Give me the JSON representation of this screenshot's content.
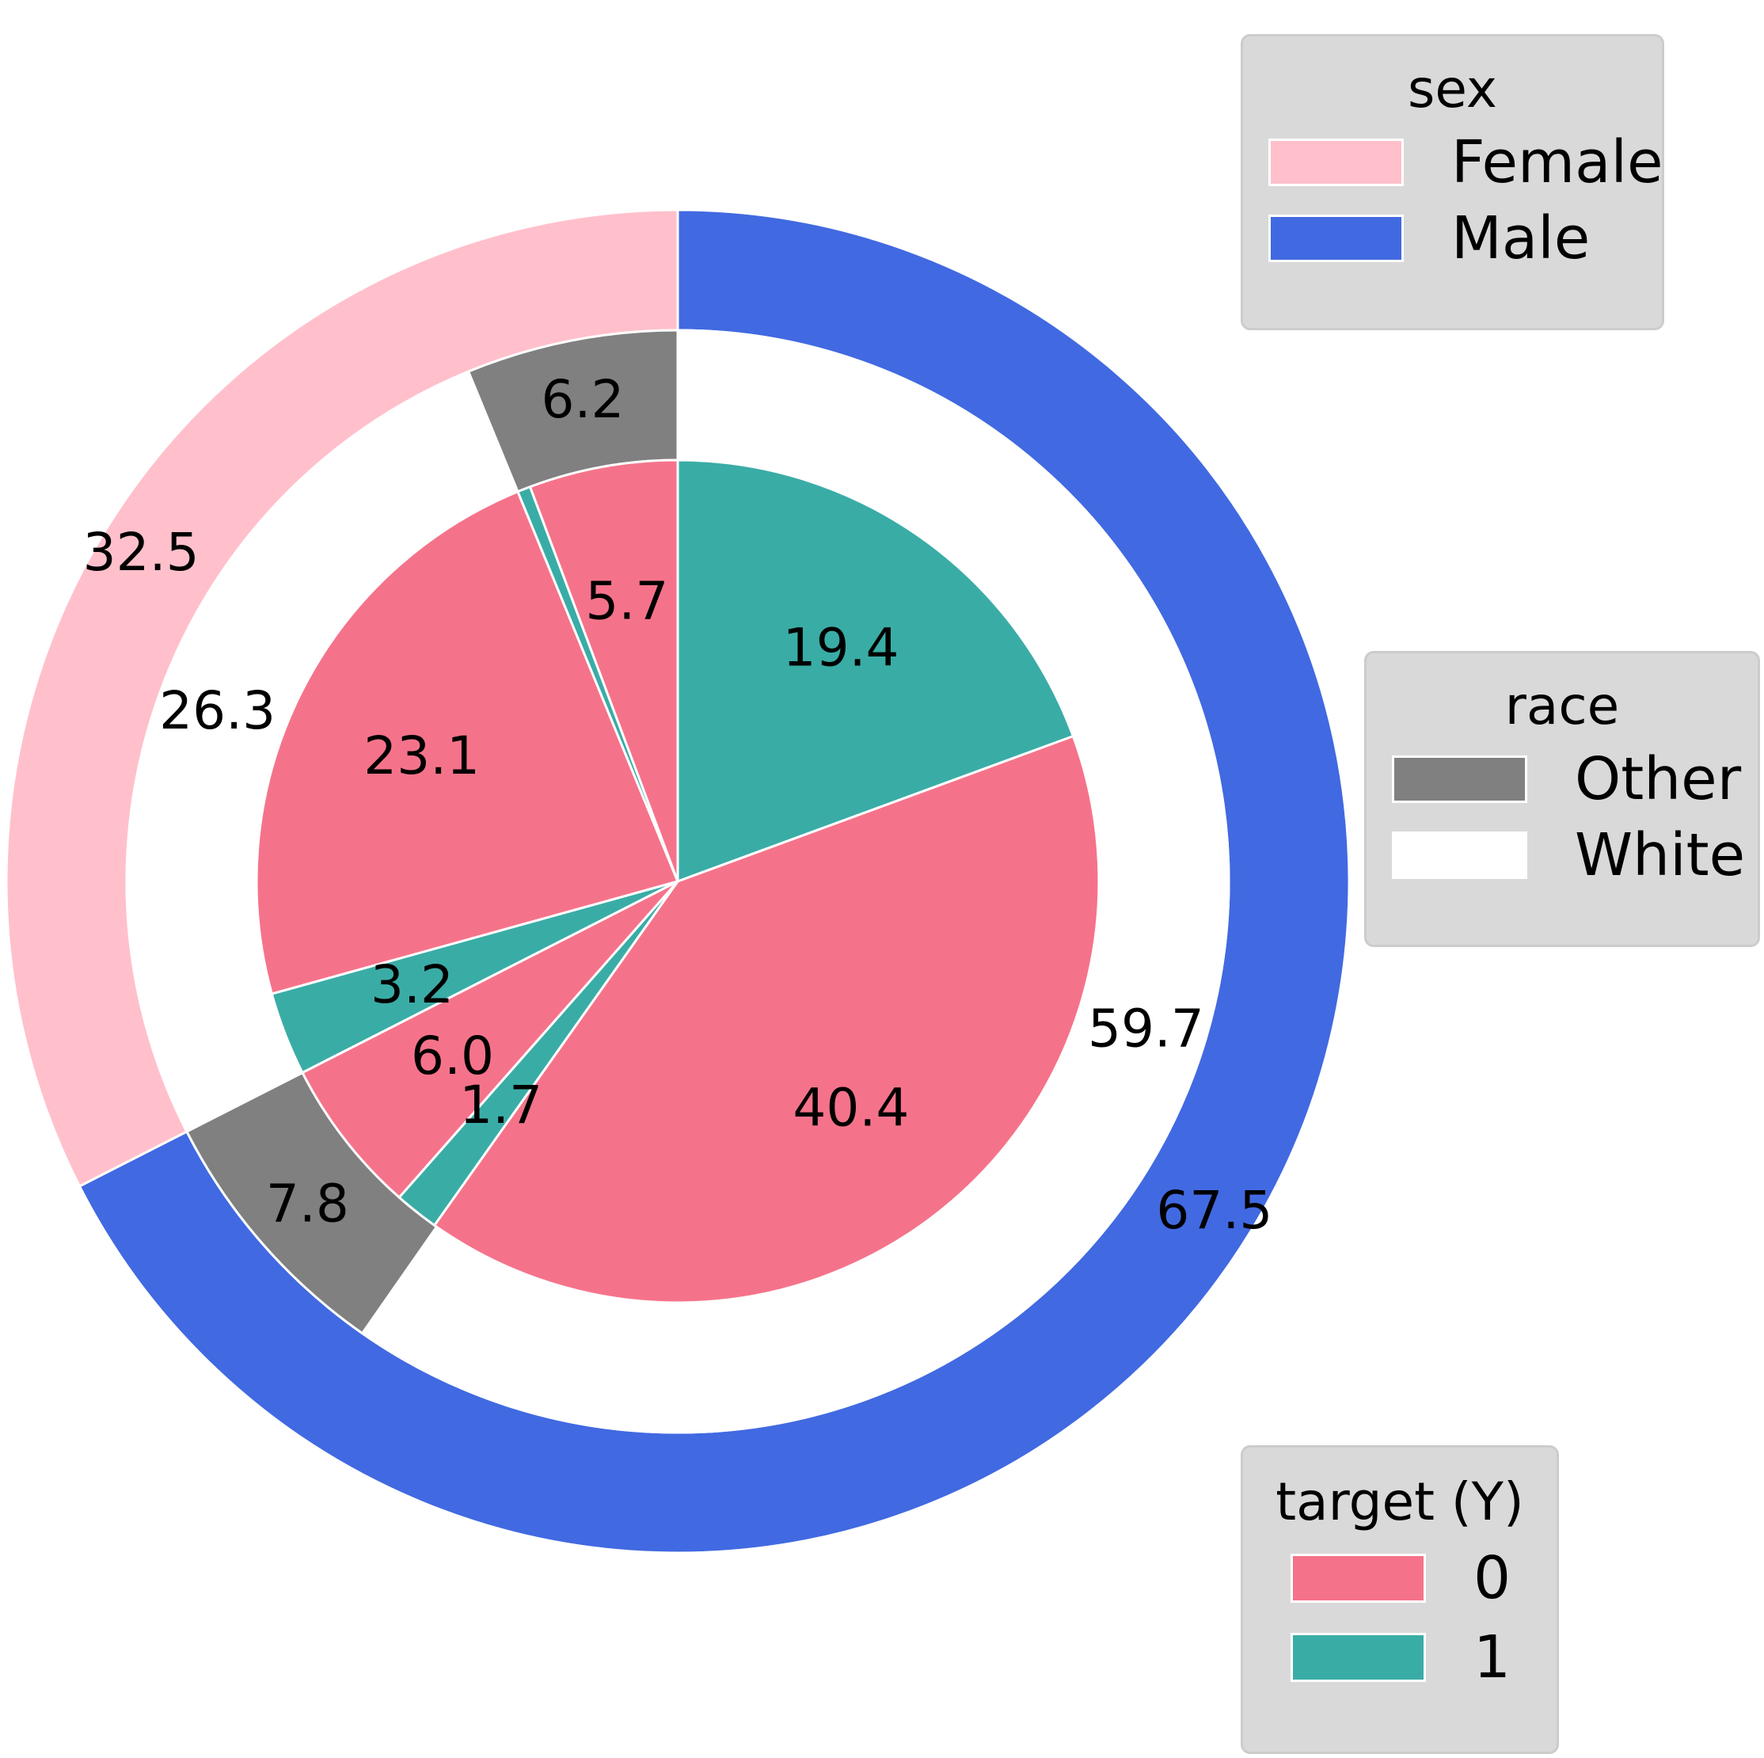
{
  "chart_data": {
    "type": "pie",
    "subtype": "nested-donut",
    "rings": [
      {
        "name": "sex",
        "slices": [
          {
            "label": "Male",
            "value": 67.5,
            "color": "#4169e1"
          },
          {
            "label": "Female",
            "value": 32.5,
            "color": "#ffc0cb"
          }
        ]
      },
      {
        "name": "race",
        "slices": [
          {
            "label": "White",
            "value": 59.7,
            "color": "#ffffff"
          },
          {
            "label": "Other",
            "value": 7.8,
            "color": "#808080"
          },
          {
            "label": "White",
            "value": 26.3,
            "color": "#ffffff"
          },
          {
            "label": "Other",
            "value": 6.2,
            "color": "#808080"
          }
        ]
      },
      {
        "name": "target (Y)",
        "slices": [
          {
            "label": "1",
            "value": 19.4,
            "color": "#3aaca6"
          },
          {
            "label": "0",
            "value": 40.4,
            "color": "#f5738a"
          },
          {
            "label": "1",
            "value": 1.7,
            "color": "#3aaca6"
          },
          {
            "label": "0",
            "value": 6.0,
            "color": "#f5738a"
          },
          {
            "label": "1",
            "value": 3.2,
            "color": "#3aaca6"
          },
          {
            "label": "0",
            "value": 23.1,
            "color": "#f5738a"
          },
          {
            "label": "1",
            "value": 0.5,
            "color": "#3aaca6"
          },
          {
            "label": "0",
            "value": 5.7,
            "color": "#f5738a"
          }
        ]
      }
    ],
    "start_angle_deg": 90,
    "direction": "clockwise",
    "legends": [
      {
        "title": "sex",
        "placement": "top-right",
        "entries": [
          {
            "label": "Female",
            "color": "#ffc0cb"
          },
          {
            "label": "Male",
            "color": "#4169e1"
          }
        ]
      },
      {
        "title": "race",
        "placement": "center-right",
        "entries": [
          {
            "label": "Other",
            "color": "#808080"
          },
          {
            "label": "White",
            "color": "#ffffff"
          }
        ]
      },
      {
        "title": "target (Y)",
        "placement": "bottom-right",
        "entries": [
          {
            "label": "0",
            "color": "#f5738a"
          },
          {
            "label": "1",
            "color": "#3aaca6"
          }
        ]
      }
    ]
  }
}
